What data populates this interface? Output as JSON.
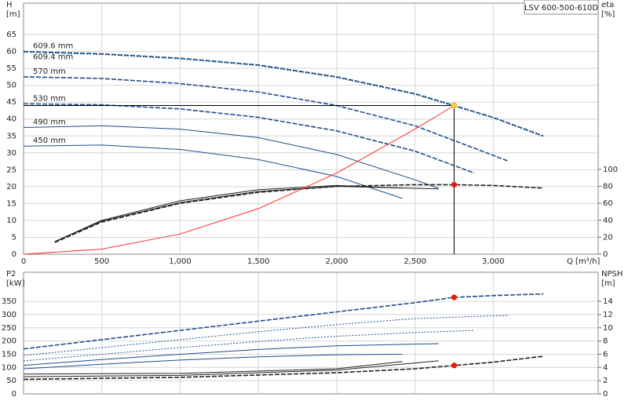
{
  "chart_data": [
    {
      "type": "line",
      "title": "LSV 600-500-610D",
      "ylabel": "H",
      "yunit": "[m]",
      "y2label": "eta",
      "y2unit": "[%]",
      "xlabel": "Q [m³/h]",
      "xlim": [
        0,
        3670
      ],
      "ylim": [
        0,
        74.3
      ],
      "y2lim": [
        0,
        296
      ],
      "xticks": [
        0,
        500,
        {
          "value": 1000,
          "label": "1,000"
        },
        {
          "value": 1500,
          "label": "1,500"
        },
        {
          "value": 2000,
          "label": "2,000"
        },
        {
          "value": 2500,
          "label": "2,500"
        },
        {
          "value": 3000,
          "label": "3,000"
        }
      ],
      "yticks": [
        0,
        5,
        10,
        15,
        20,
        25,
        30,
        35,
        40,
        45,
        50,
        55,
        60,
        65
      ],
      "y2ticks": [
        0,
        20,
        40,
        60,
        80,
        100
      ],
      "grid": true,
      "show_xtick_labels": true,
      "series": [
        {
          "name": "609.6 mm",
          "color": "#1f4e89",
          "dash": "dashed",
          "x": [
            0,
            500,
            1000,
            1500,
            2000,
            2500,
            2750,
            3000,
            3320
          ],
          "values": [
            60,
            59.3,
            58,
            56,
            52.5,
            47.5,
            44,
            40.5,
            35
          ]
        },
        {
          "name": "609.4 mm",
          "color": "#1f4e89",
          "dash": "dotted",
          "x": [
            0,
            500,
            1000,
            1500,
            2000,
            2500,
            2750,
            3000,
            3320
          ],
          "values": [
            59.8,
            59.1,
            57.8,
            55.8,
            52.3,
            47.3,
            43.8,
            40.3,
            34.8
          ]
        },
        {
          "name": "570 mm",
          "color": "#1f4e89",
          "dash": "dashed",
          "x": [
            0,
            500,
            1000,
            1500,
            2000,
            2500,
            3100
          ],
          "values": [
            52.5,
            52,
            50.5,
            48,
            44,
            38,
            27.5
          ]
        },
        {
          "name": "530 mm",
          "color": "#1f4e89",
          "dash": "dashed",
          "x": [
            0,
            500,
            1000,
            1500,
            2000,
            2500,
            2880
          ],
          "values": [
            44.5,
            44.2,
            43,
            40.5,
            36.5,
            30.5,
            24
          ]
        },
        {
          "name": "490 mm",
          "color": "#1f4e89",
          "dash": "solid",
          "x": [
            0,
            500,
            1000,
            1500,
            2000,
            2500,
            2650
          ],
          "values": [
            37.5,
            38,
            37,
            34.5,
            29.5,
            22,
            19.5
          ]
        },
        {
          "name": "450 mm",
          "color": "#1f4e89",
          "dash": "solid",
          "x": [
            0,
            500,
            1000,
            1500,
            2000,
            2420
          ],
          "values": [
            32,
            32.3,
            31,
            28,
            23,
            16.5
          ]
        },
        {
          "color": "#222222",
          "dash": "dashed",
          "axis": "y2",
          "x": [
            200,
            500,
            1000,
            1500,
            2000,
            2500,
            2750,
            3000,
            3320
          ],
          "values": [
            14,
            38,
            60,
            73,
            80,
            82,
            82,
            81,
            78
          ]
        },
        {
          "color": "#222222",
          "dash": "solid",
          "axis": "y2",
          "x": [
            200,
            500,
            1000,
            1500,
            2000,
            2650
          ],
          "values": [
            15,
            39,
            61,
            74,
            80,
            77
          ]
        },
        {
          "color": "#222222",
          "dash": "solid",
          "axis": "y2",
          "x": [
            200,
            500,
            1000,
            1500,
            2000,
            2420
          ],
          "values": [
            15,
            40,
            63,
            76,
            81,
            78
          ]
        },
        {
          "color": "#ff2a2a",
          "dash": "solid",
          "x": [
            0,
            500,
            1000,
            1500,
            2000,
            2500,
            2750
          ],
          "values": [
            0,
            1.5,
            6,
            13.5,
            24,
            37,
            44
          ]
        },
        {
          "color": "#ffcc33",
          "marker": true,
          "guide": true,
          "x": [
            2750
          ],
          "values": [
            44
          ]
        },
        {
          "color": "#e8141c",
          "marker": true,
          "axis": "y2",
          "x": [
            2750
          ],
          "values": [
            82
          ]
        }
      ]
    },
    {
      "type": "line",
      "ylabel": "P2",
      "yunit": "[kW]",
      "y2label": "NPSH",
      "y2unit": "[m]",
      "xlim": [
        0,
        3670
      ],
      "ylim": [
        0,
        460
      ],
      "y2lim": [
        0,
        18.4
      ],
      "xticks": [
        0,
        500,
        1000,
        1500,
        2000,
        2500,
        3000
      ],
      "yticks": [
        0,
        50,
        100,
        150,
        200,
        250,
        300,
        350
      ],
      "y2ticks": [
        0,
        2,
        4,
        6,
        8,
        10,
        12,
        14
      ],
      "grid": true,
      "show_xtick_labels": false,
      "series": [
        {
          "color": "#1f4e89",
          "dash": "dashed",
          "x": [
            0,
            500,
            1000,
            1500,
            2000,
            2500,
            2750,
            3000,
            3320
          ],
          "values": [
            170,
            205,
            240,
            275,
            310,
            345,
            365,
            372,
            378
          ]
        },
        {
          "color": "#1f4e89",
          "dash": "dotted",
          "x": [
            0,
            500,
            1000,
            1500,
            2000,
            2500,
            3100
          ],
          "values": [
            145,
            175,
            205,
            235,
            262,
            285,
            297
          ]
        },
        {
          "color": "#1f4e89",
          "dash": "dotted",
          "x": [
            0,
            500,
            1000,
            1500,
            2000,
            2500,
            2880
          ],
          "values": [
            125,
            150,
            175,
            198,
            218,
            232,
            240
          ]
        },
        {
          "color": "#1f4e89",
          "dash": "solid",
          "x": [
            0,
            500,
            1000,
            1500,
            2000,
            2650
          ],
          "values": [
            108,
            130,
            150,
            168,
            182,
            190
          ]
        },
        {
          "color": "#1f4e89",
          "dash": "solid",
          "x": [
            0,
            500,
            1000,
            1500,
            2000,
            2420
          ],
          "values": [
            95,
            112,
            128,
            140,
            148,
            150
          ]
        },
        {
          "color": "#222222",
          "dash": "dashed",
          "axis": "y2",
          "x": [
            0,
            1000,
            2000,
            2500,
            2750,
            3000,
            3320
          ],
          "values": [
            2.2,
            2.5,
            3.2,
            3.8,
            4.3,
            4.8,
            5.7
          ]
        },
        {
          "color": "#222222",
          "dash": "solid",
          "axis": "y2",
          "x": [
            0,
            1000,
            2000,
            2650
          ],
          "values": [
            2.6,
            2.8,
            3.6,
            5
          ]
        },
        {
          "color": "#222222",
          "dash": "solid",
          "axis": "y2",
          "x": [
            0,
            1000,
            2000,
            2420
          ],
          "values": [
            3,
            3.1,
            3.8,
            4.9
          ]
        },
        {
          "color": "#e8141c",
          "marker": true,
          "x": [
            2750
          ],
          "values": [
            365
          ]
        },
        {
          "color": "#e8141c",
          "marker": true,
          "axis": "y2",
          "x": [
            2750
          ],
          "values": [
            4.3
          ]
        }
      ]
    }
  ]
}
